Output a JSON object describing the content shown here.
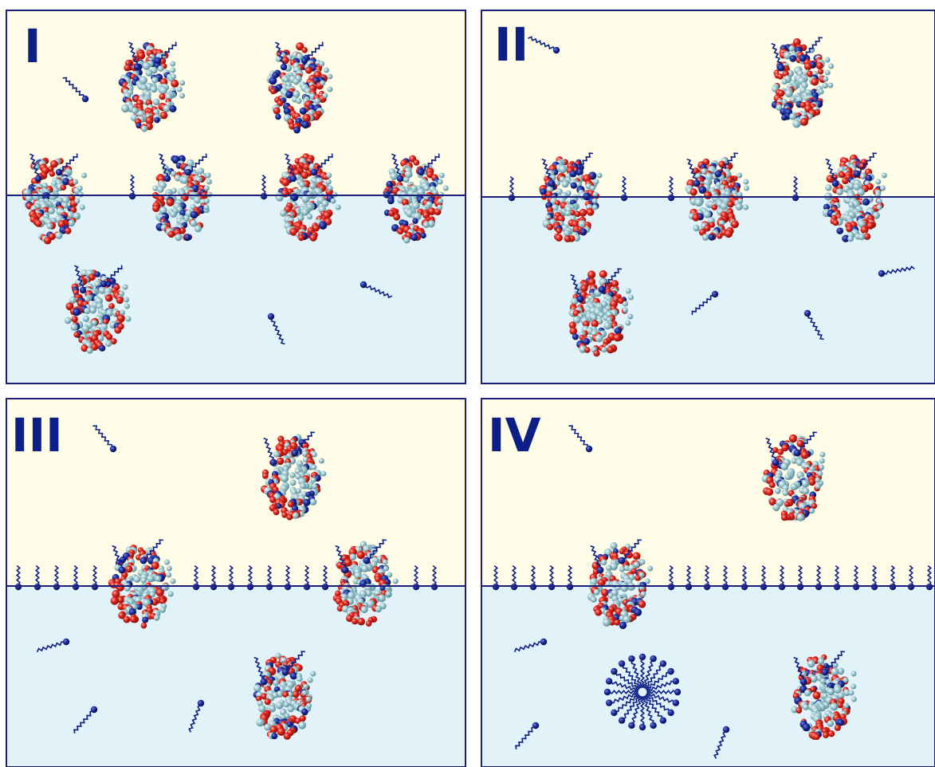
{
  "colors": {
    "air": "#fffde8",
    "water": "#e1f2f9",
    "frame": "#1c1f7a",
    "surfactant": "#0b1f86",
    "atom_red": "#e4261c",
    "atom_red_dark": "#8c0f0a",
    "atom_teal": "#8fbdc6",
    "atom_teal_dark": "#5d8f9a",
    "atom_navy": "#0b1f86",
    "label": "#0b1f86"
  },
  "panels": [
    {
      "label": "I",
      "air_free_surfactants": 1,
      "water_free_surfactants": 2,
      "interface_surfactants": 2,
      "proteins_in_air": 2,
      "proteins_at_interface": 4,
      "proteins_in_water": 1,
      "micelles": 0
    },
    {
      "label": "II",
      "air_free_surfactants": 1,
      "water_free_surfactants": 3,
      "interface_surfactants": 4,
      "proteins_in_air": 1,
      "proteins_at_interface": 3,
      "proteins_in_water": 1,
      "micelles": 0
    },
    {
      "label": "III",
      "air_free_surfactants": 1,
      "water_free_surfactants": 3,
      "interface_surfactants": 15,
      "proteins_in_air": 1,
      "proteins_at_interface": 2,
      "proteins_in_water": 1,
      "micelles": 0
    },
    {
      "label": "IV",
      "air_free_surfactants": 1,
      "water_free_surfactants": 3,
      "interface_surfactants": 20,
      "proteins_in_air": 1,
      "proteins_at_interface": 1,
      "proteins_in_water": 1,
      "micelles": 1
    }
  ]
}
